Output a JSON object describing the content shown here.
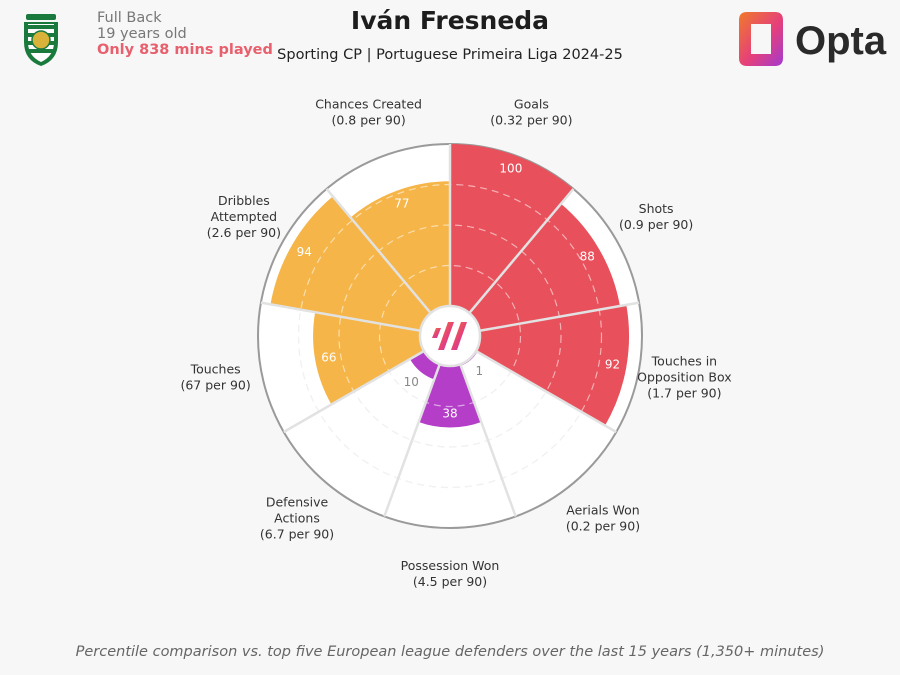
{
  "header": {
    "club_badge": "sporting-cp-lion-badge",
    "position": "Full Back",
    "age": "19 years old",
    "minutes_warning": "Only 838 mins played",
    "title": "Iván Fresneda",
    "subtitle": "Sporting CP | Portuguese Primeira Liga 2024-25",
    "brand": "Opta"
  },
  "chart_data": {
    "type": "radar",
    "value_scale": "percentile",
    "rlim": [
      0,
      100
    ],
    "grid": true,
    "metrics": [
      {
        "label": [
          "Goals",
          "(0.32 per 90)"
        ],
        "percentile": 100,
        "color": "#e8505b"
      },
      {
        "label": [
          "Shots",
          "(0.9 per 90)"
        ],
        "percentile": 88,
        "color": "#e8505b"
      },
      {
        "label": [
          "Touches in",
          "Opposition Box",
          "(1.7 per 90)"
        ],
        "percentile": 92,
        "color": "#e8505b"
      },
      {
        "label": [
          "Aerials Won",
          "(0.2 per 90)"
        ],
        "percentile": 1,
        "color": "#b43ec8"
      },
      {
        "label": [
          "Possession Won",
          "(4.5 per 90)"
        ],
        "percentile": 38,
        "color": "#b43ec8"
      },
      {
        "label": [
          "Defensive",
          "Actions",
          "(6.7 per 90)"
        ],
        "percentile": 10,
        "color": "#b43ec8"
      },
      {
        "label": [
          "Touches",
          "(67 per 90)"
        ],
        "percentile": 66,
        "color": "#f5b548"
      },
      {
        "label": [
          "Dribbles",
          "Attempted",
          "(2.6 per 90)"
        ],
        "percentile": 94,
        "color": "#f5b548"
      },
      {
        "label": [
          "Chances Created",
          "(0.8 per 90)"
        ],
        "percentile": 77,
        "color": "#f5b548"
      }
    ],
    "center_icon": "opta-mark-icon"
  },
  "footnote": "Percentile comparison vs. top five European league defenders over the last 15 years (1,350+ minutes)"
}
